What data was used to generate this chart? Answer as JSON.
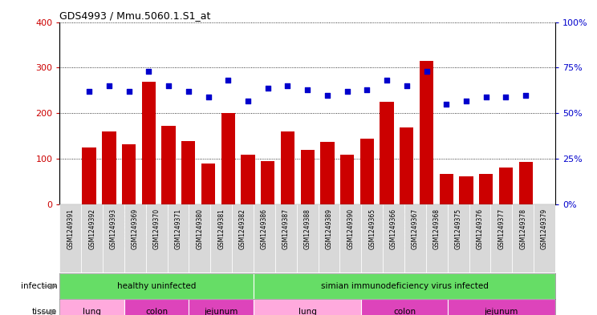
{
  "title": "GDS4993 / Mmu.5060.1.S1_at",
  "samples": [
    "GSM1249391",
    "GSM1249392",
    "GSM1249393",
    "GSM1249369",
    "GSM1249370",
    "GSM1249371",
    "GSM1249380",
    "GSM1249381",
    "GSM1249382",
    "GSM1249386",
    "GSM1249387",
    "GSM1249388",
    "GSM1249389",
    "GSM1249390",
    "GSM1249365",
    "GSM1249366",
    "GSM1249367",
    "GSM1249368",
    "GSM1249375",
    "GSM1249376",
    "GSM1249377",
    "GSM1249378",
    "GSM1249379"
  ],
  "counts": [
    125,
    160,
    133,
    270,
    172,
    140,
    90,
    200,
    110,
    95,
    160,
    120,
    138,
    110,
    145,
    225,
    170,
    315,
    68,
    63,
    68,
    82,
    93
  ],
  "percentile": [
    62,
    65,
    62,
    73,
    65,
    62,
    59,
    68,
    57,
    64,
    65,
    63,
    60,
    62,
    63,
    68,
    65,
    73,
    55,
    57,
    59,
    59,
    60
  ],
  "bar_color": "#cc0000",
  "dot_color": "#0000cc",
  "ylim_left": [
    0,
    400
  ],
  "ylim_right": [
    0,
    100
  ],
  "yticks_left": [
    0,
    100,
    200,
    300,
    400
  ],
  "yticks_right": [
    0,
    25,
    50,
    75,
    100
  ],
  "infection_groups": [
    {
      "label": "healthy uninfected",
      "start": 0,
      "end": 9,
      "color": "#66dd66"
    },
    {
      "label": "simian immunodeficiency virus infected",
      "start": 9,
      "end": 23,
      "color": "#66dd66"
    }
  ],
  "tissue_groups": [
    {
      "label": "lung",
      "start": 0,
      "end": 3,
      "color": "#ffaadd"
    },
    {
      "label": "colon",
      "start": 3,
      "end": 6,
      "color": "#dd44bb"
    },
    {
      "label": "jejunum",
      "start": 6,
      "end": 9,
      "color": "#dd44bb"
    },
    {
      "label": "lung",
      "start": 9,
      "end": 14,
      "color": "#ffaadd"
    },
    {
      "label": "colon",
      "start": 14,
      "end": 18,
      "color": "#dd44bb"
    },
    {
      "label": "jejunum",
      "start": 18,
      "end": 23,
      "color": "#dd44bb"
    }
  ],
  "xticklabel_bg": "#d8d8d8"
}
